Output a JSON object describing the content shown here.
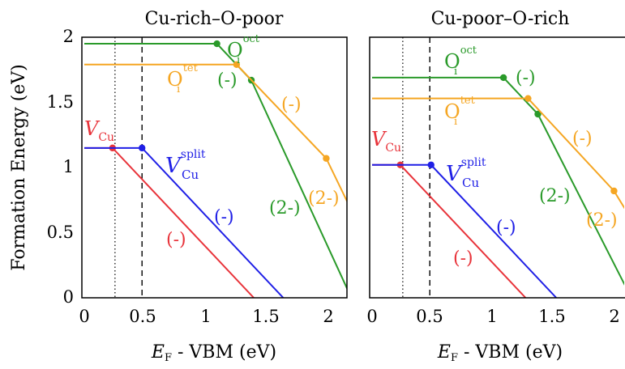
{
  "ylabel": "Formation Energy (eV)",
  "colors": {
    "V_Cu": "#e8333a",
    "V_Cu_split": "#1f1fe6",
    "O_i_oct": "#2a9a2a",
    "O_i_tet": "#f5a623"
  },
  "chart_data": [
    {
      "type": "line",
      "title": "Cu-rich–O-poor",
      "xlabel": "E_F - VBM (eV)",
      "ylabel": "Formation Energy (eV)",
      "xlim": [
        0,
        2.15
      ],
      "ylim": [
        0,
        2.0
      ],
      "x_ticks": [
        "0",
        "0.5",
        "1",
        "1.5",
        "2"
      ],
      "y_ticks": [
        "0",
        "0.5",
        "1",
        "1.5",
        "2"
      ],
      "dotted_vline_x": 0.25,
      "dashed_vline_x": 0.47,
      "series": [
        {
          "name": "V_Cu",
          "color": "#e8333a",
          "x": [
            0,
            0.23,
            1.38
          ],
          "y": [
            1.15,
            1.15,
            0
          ],
          "transition_points": [
            [
              0.23,
              1.15
            ]
          ],
          "charge_labels": [
            "(-)"
          ]
        },
        {
          "name": "V_Cu^split",
          "color": "#1f1fe6",
          "x": [
            0,
            0.47,
            1.62
          ],
          "y": [
            1.15,
            1.15,
            0
          ],
          "transition_points": [
            [
              0.47,
              1.15
            ]
          ],
          "charge_labels": [
            "(-)"
          ]
        },
        {
          "name": "O_i^oct",
          "color": "#2a9a2a",
          "x": [
            0,
            1.08,
            1.36,
            2.15
          ],
          "y": [
            1.95,
            1.95,
            1.67,
            0.05
          ],
          "transition_points": [
            [
              1.08,
              1.95
            ],
            [
              1.36,
              1.67
            ]
          ],
          "charge_labels": [
            "(-)",
            "(2-)"
          ]
        },
        {
          "name": "O_i^tet",
          "color": "#f5a623",
          "x": [
            0,
            1.24,
            1.97,
            2.15
          ],
          "y": [
            1.79,
            1.79,
            1.07,
            0.72
          ],
          "transition_points": [
            [
              1.24,
              1.79
            ],
            [
              1.97,
              1.07
            ]
          ],
          "charge_labels": [
            "(-)",
            "(2-)"
          ]
        }
      ]
    },
    {
      "type": "line",
      "title": "Cu-poor–O-rich",
      "xlabel": "E_F - VBM (eV)",
      "ylabel": "Formation Energy (eV)",
      "xlim": [
        0,
        2.1
      ],
      "ylim": [
        0,
        2.0
      ],
      "x_ticks": [
        "0",
        "0.5",
        "1",
        "1.5",
        "2"
      ],
      "y_ticks": [
        "0",
        "0.5",
        "1",
        "1.5",
        "2"
      ],
      "dotted_vline_x": 0.25,
      "dashed_vline_x": 0.47,
      "series": [
        {
          "name": "V_Cu",
          "color": "#e8333a",
          "x": [
            0,
            0.23,
            1.25
          ],
          "y": [
            1.02,
            1.02,
            0
          ],
          "transition_points": [
            [
              0.23,
              1.02
            ]
          ],
          "charge_labels": [
            "(-)"
          ]
        },
        {
          "name": "V_Cu^split",
          "color": "#1f1fe6",
          "x": [
            0,
            0.48,
            1.5
          ],
          "y": [
            1.02,
            1.02,
            0
          ],
          "transition_points": [
            [
              0.48,
              1.02
            ]
          ],
          "charge_labels": [
            "(-)"
          ]
        },
        {
          "name": "O_i^oct",
          "color": "#2a9a2a",
          "x": [
            0,
            1.07,
            1.35,
            2.1
          ],
          "y": [
            1.69,
            1.69,
            1.41,
            0.02
          ],
          "transition_points": [
            [
              1.07,
              1.69
            ],
            [
              1.35,
              1.41
            ]
          ],
          "charge_labels": [
            "(-)",
            "(2-)"
          ]
        },
        {
          "name": "O_i^tet",
          "color": "#f5a623",
          "x": [
            0,
            1.27,
            1.97,
            2.1
          ],
          "y": [
            1.53,
            1.53,
            0.82,
            0.62
          ],
          "transition_points": [
            [
              1.27,
              1.53
            ],
            [
              1.97,
              0.82
            ]
          ],
          "charge_labels": [
            "(-)",
            "(2-)"
          ]
        }
      ]
    }
  ],
  "ui": {
    "panel1": {
      "title": "Cu-rich–O-poor",
      "xlabel": {
        "e": "E",
        "sub": "F",
        "rest": " - VBM (eV)"
      },
      "ticks": {
        "x0": "0",
        "x1": "0.5",
        "x2": "1",
        "x3": "1.5",
        "x4": "2",
        "y0": "0",
        "y1": "0.5",
        "y2": "1",
        "y3": "1.5",
        "y4": "2"
      },
      "labels": {
        "o_oct_main": "O",
        "o_oct_sub": "i",
        "o_oct_sup": "oct",
        "o_tet_main": "O",
        "o_tet_sub": "i",
        "o_tet_sup": "tet",
        "v_cu_main": "V",
        "v_cu_sub": "Cu",
        "v_split_main": "V",
        "v_split_sub": "Cu",
        "v_split_sup": "split",
        "green_minus": "(-)",
        "green_2minus": "(2-)",
        "orange_minus": "(-)",
        "orange_2minus": "(2-)",
        "blue_minus": "(-)",
        "red_minus": "(-)"
      }
    },
    "panel2": {
      "title": "Cu-poor–O-rich",
      "xlabel": {
        "e": "E",
        "sub": "F",
        "rest": " - VBM (eV)"
      },
      "ticks": {
        "x0": "0",
        "x1": "0.5",
        "x2": "1",
        "x3": "1.5",
        "x4": "2"
      },
      "labels": {
        "o_oct_main": "O",
        "o_oct_sub": "i",
        "o_oct_sup": "oct",
        "o_tet_main": "O",
        "o_tet_sub": "i",
        "o_tet_sup": "tet",
        "v_cu_main": "V",
        "v_cu_sub": "Cu",
        "v_split_main": "V",
        "v_split_sub": "Cu",
        "v_split_sup": "split",
        "green_minus": "(-)",
        "green_2minus": "(2-)",
        "orange_minus": "(-)",
        "orange_2minus": "(2-)",
        "blue_minus": "(-)",
        "red_minus": "(-)"
      }
    }
  }
}
